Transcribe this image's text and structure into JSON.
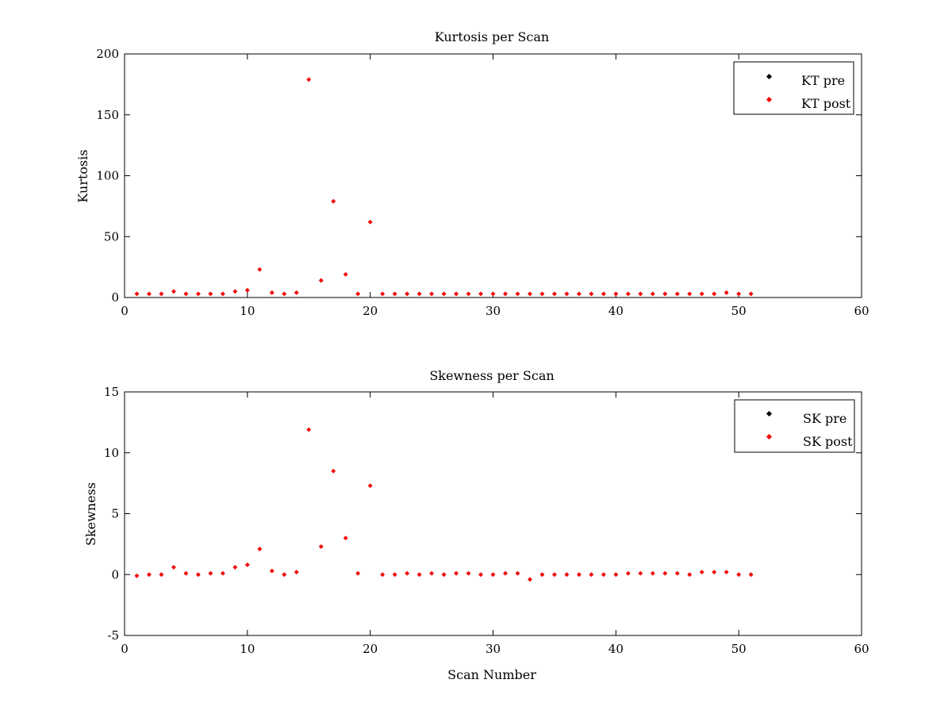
{
  "chart_data": [
    {
      "type": "scatter",
      "title": "Kurtosis per Scan",
      "xlabel": "",
      "ylabel": "Kurtosis",
      "xlim": [
        0,
        60
      ],
      "ylim": [
        0,
        200
      ],
      "xticks": [
        0,
        10,
        20,
        30,
        40,
        50,
        60
      ],
      "yticks": [
        0,
        50,
        100,
        150,
        200
      ],
      "grid": false,
      "legend_position": "top-right",
      "series": [
        {
          "name": "KT pre",
          "color": "#000000",
          "x": [
            1,
            2,
            3,
            4,
            5,
            6,
            7,
            8,
            9,
            10,
            11,
            12,
            13,
            14,
            15,
            16,
            17,
            18,
            19,
            20,
            21,
            22,
            23,
            24,
            25,
            26,
            27,
            28,
            29,
            30,
            31,
            32,
            33,
            34,
            35,
            36,
            37,
            38,
            39,
            40,
            41,
            42,
            43,
            44,
            45,
            46,
            47,
            48,
            49,
            50,
            51
          ],
          "y": [
            3,
            3,
            3,
            5,
            3,
            3,
            3,
            3,
            5,
            6,
            23,
            4,
            3,
            4,
            179,
            14,
            79,
            19,
            3,
            62,
            3,
            3,
            3,
            3,
            3,
            3,
            3,
            3,
            3,
            3,
            3,
            3,
            3,
            3,
            3,
            3,
            3,
            3,
            3,
            3,
            3,
            3,
            3,
            3,
            3,
            3,
            3,
            3,
            4,
            3,
            3
          ]
        },
        {
          "name": "KT post",
          "color": "#ff0000",
          "x": [
            1,
            2,
            3,
            4,
            5,
            6,
            7,
            8,
            9,
            10,
            11,
            12,
            13,
            14,
            15,
            16,
            17,
            18,
            19,
            20,
            21,
            22,
            23,
            24,
            25,
            26,
            27,
            28,
            29,
            30,
            31,
            32,
            33,
            34,
            35,
            36,
            37,
            38,
            39,
            40,
            41,
            42,
            43,
            44,
            45,
            46,
            47,
            48,
            49,
            50,
            51
          ],
          "y": [
            3,
            3,
            3,
            5,
            3,
            3,
            3,
            3,
            5,
            6,
            23,
            4,
            3,
            4,
            179,
            14,
            79,
            19,
            3,
            62,
            3,
            3,
            3,
            3,
            3,
            3,
            3,
            3,
            3,
            3,
            3,
            3,
            3,
            3,
            3,
            3,
            3,
            3,
            3,
            3,
            3,
            3,
            3,
            3,
            3,
            3,
            3,
            3,
            4,
            3,
            3
          ]
        }
      ]
    },
    {
      "type": "scatter",
      "title": "Skewness per Scan",
      "xlabel": "Scan Number",
      "ylabel": "Skewness",
      "xlim": [
        0,
        60
      ],
      "ylim": [
        -5,
        15
      ],
      "xticks": [
        0,
        10,
        20,
        30,
        40,
        50,
        60
      ],
      "yticks": [
        -5,
        0,
        5,
        10,
        15
      ],
      "grid": false,
      "legend_position": "top-right",
      "series": [
        {
          "name": "SK pre",
          "color": "#000000",
          "x": [
            1,
            2,
            3,
            4,
            5,
            6,
            7,
            8,
            9,
            10,
            11,
            12,
            13,
            14,
            15,
            16,
            17,
            18,
            19,
            20,
            21,
            22,
            23,
            24,
            25,
            26,
            27,
            28,
            29,
            30,
            31,
            32,
            33,
            34,
            35,
            36,
            37,
            38,
            39,
            40,
            41,
            42,
            43,
            44,
            45,
            46,
            47,
            48,
            49,
            50,
            51
          ],
          "y": [
            -0.1,
            0,
            0,
            0.6,
            0.1,
            0,
            0.1,
            0.1,
            0.6,
            0.8,
            2.1,
            0.3,
            0,
            0.2,
            11.9,
            2.3,
            8.5,
            3.0,
            0.1,
            7.3,
            0,
            0,
            0.1,
            0,
            0.1,
            0,
            0.1,
            0.1,
            0,
            0,
            0.1,
            0.1,
            -0.4,
            0,
            0,
            0,
            0,
            0,
            0,
            0,
            0.1,
            0.1,
            0.1,
            0.1,
            0.1,
            0,
            0.2,
            0.2,
            0.2,
            0,
            0
          ]
        },
        {
          "name": "SK post",
          "color": "#ff0000",
          "x": [
            1,
            2,
            3,
            4,
            5,
            6,
            7,
            8,
            9,
            10,
            11,
            12,
            13,
            14,
            15,
            16,
            17,
            18,
            19,
            20,
            21,
            22,
            23,
            24,
            25,
            26,
            27,
            28,
            29,
            30,
            31,
            32,
            33,
            34,
            35,
            36,
            37,
            38,
            39,
            40,
            41,
            42,
            43,
            44,
            45,
            46,
            47,
            48,
            49,
            50,
            51
          ],
          "y": [
            -0.1,
            0,
            0,
            0.6,
            0.1,
            0,
            0.1,
            0.1,
            0.6,
            0.8,
            2.1,
            0.3,
            0,
            0.2,
            11.9,
            2.3,
            8.5,
            3.0,
            0.1,
            7.3,
            0,
            0,
            0.1,
            0,
            0.1,
            0,
            0.1,
            0.1,
            0,
            0,
            0.1,
            0.1,
            -0.4,
            0,
            0,
            0,
            0,
            0,
            0,
            0,
            0.1,
            0.1,
            0.1,
            0.1,
            0.1,
            0,
            0.2,
            0.2,
            0.2,
            0,
            0
          ]
        }
      ]
    }
  ]
}
